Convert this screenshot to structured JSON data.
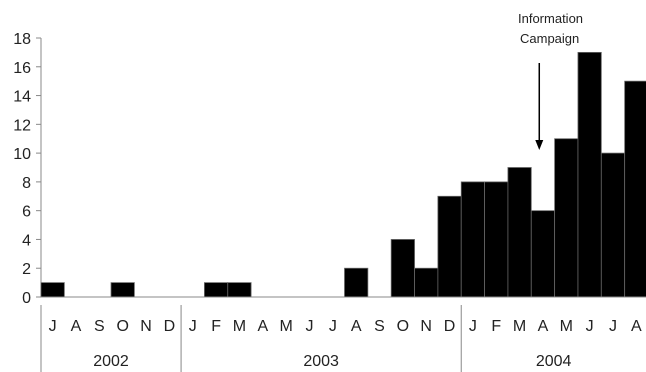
{
  "chart_data": {
    "type": "bar",
    "categories": [
      "J",
      "A",
      "S",
      "O",
      "N",
      "D",
      "J",
      "F",
      "M",
      "A",
      "M",
      "J",
      "J",
      "A",
      "S",
      "O",
      "N",
      "D",
      "J",
      "F",
      "M",
      "A",
      "M",
      "J",
      "J",
      "A"
    ],
    "values": [
      1,
      0,
      0,
      1,
      0,
      0,
      0,
      1,
      1,
      0,
      0,
      0,
      0,
      2,
      0,
      4,
      2,
      7,
      8,
      8,
      9,
      6,
      11,
      17,
      10,
      15
    ],
    "years": [
      {
        "label": "2002",
        "start": 0,
        "end": 6
      },
      {
        "label": "2003",
        "start": 6,
        "end": 18
      },
      {
        "label": "2004",
        "start": 18,
        "end": 26
      }
    ],
    "yticks": [
      "0",
      "2",
      "4",
      "6",
      "8",
      "10",
      "12",
      "14",
      "16",
      "18"
    ],
    "ylim": [
      0,
      18
    ],
    "annotation": {
      "line1": "Information",
      "line2": "Campaign",
      "index": 21
    },
    "bar_color": "#000000",
    "grid": false
  }
}
